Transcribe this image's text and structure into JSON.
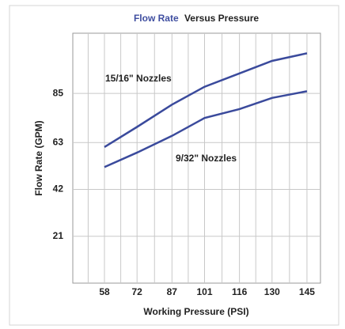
{
  "chart_data": {
    "type": "line",
    "title": [
      "Flow Rate",
      "Versus Pressure"
    ],
    "title_colors": [
      "#3f4ea0",
      "#222222"
    ],
    "x_label": "Working Pressure (PSI)",
    "y_label": "Flow Rate (GPM)",
    "x": [
      58,
      72,
      87,
      101,
      116,
      130,
      145
    ],
    "series": [
      {
        "name": "15/16\" Nozzles",
        "color": "#3a4a9c",
        "values": [
          61,
          70,
          80,
          88,
          94,
          99.6,
          103
        ]
      },
      {
        "name": "9/32\" Nozzles",
        "color": "#3a4a9c",
        "values": [
          52,
          58.5,
          66,
          74,
          78,
          83,
          86
        ]
      }
    ],
    "xlim": [
      44.4,
      150.8
    ],
    "xticks": [
      58,
      72,
      87,
      101,
      116,
      130,
      145
    ],
    "ylim": [
      0,
      112
    ],
    "yticks": [
      21,
      42,
      63,
      85
    ],
    "grid": true
  }
}
